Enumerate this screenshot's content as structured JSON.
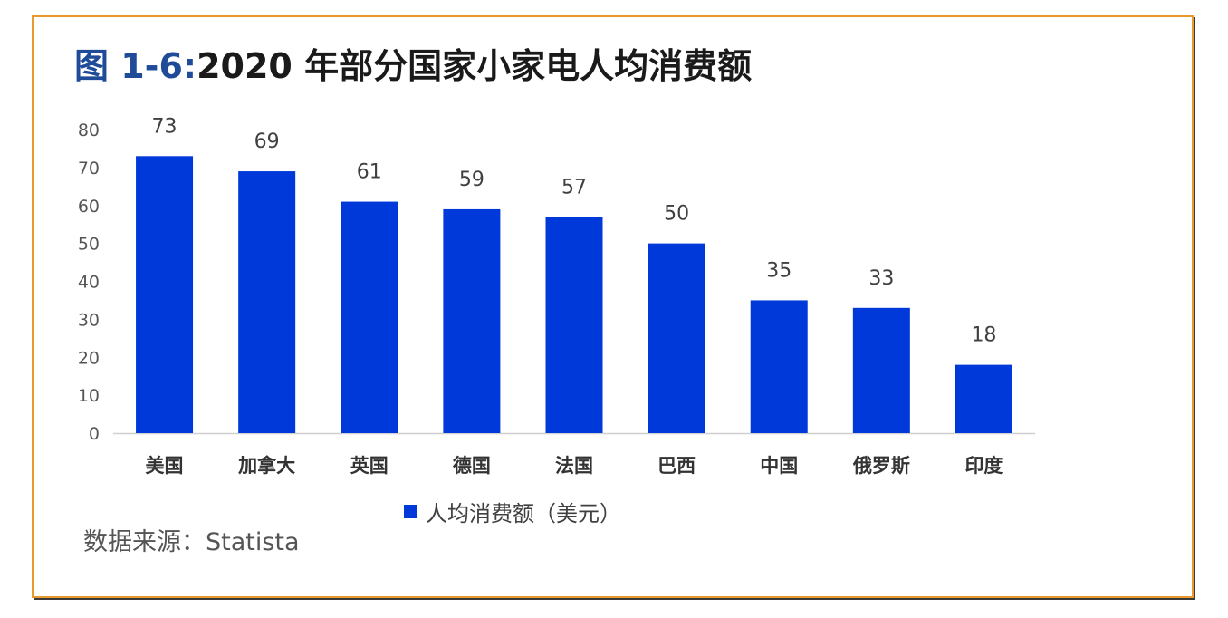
{
  "figure": {
    "title_prefix": "图 1-6:",
    "title_main": "2020 年部分国家小家电人均消费额",
    "source": "数据来源：Statista"
  },
  "chart_data": {
    "type": "bar",
    "title": "2020 年部分国家小家电人均消费额",
    "categories": [
      "美国",
      "加拿大",
      "英国",
      "德国",
      "法国",
      "巴西",
      "中国",
      "俄罗斯",
      "印度"
    ],
    "series": [
      {
        "name": "人均消费额（美元）",
        "values": [
          73,
          69,
          61,
          59,
          57,
          50,
          35,
          33,
          18
        ],
        "color": "#0039d9"
      }
    ],
    "ylim": [
      0,
      80
    ],
    "yticks": [
      0,
      10,
      20,
      30,
      40,
      50,
      60,
      70,
      80
    ],
    "grid": false,
    "legend_position": "bottom",
    "xlabel": "",
    "ylabel": ""
  }
}
